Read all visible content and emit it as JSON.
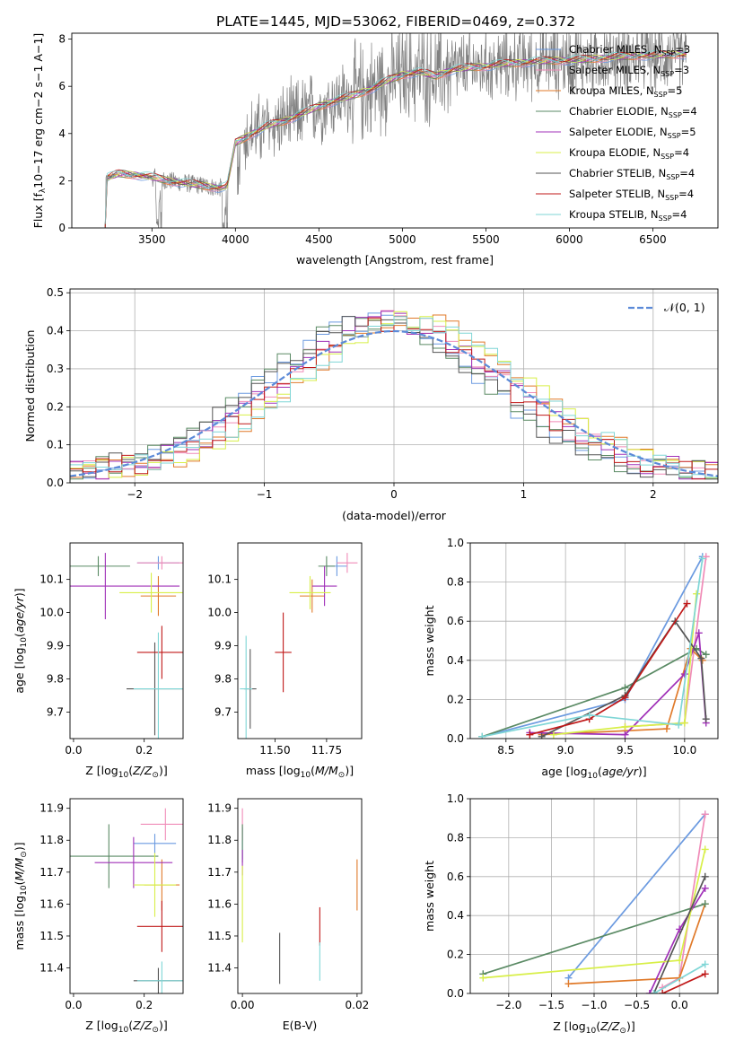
{
  "title": "PLATE=1445, MJD=53062, FIBERID=0469, z=0.372",
  "colors": {
    "chabrier_miles": "#6b9ae0",
    "salpeter_miles": "#f08cb8",
    "kroupa_miles": "#e07a2a",
    "chabrier_elodie": "#5a8a64",
    "salpeter_elodie": "#a030b8",
    "kroupa_elodie": "#d8ef48",
    "chabrier_stelib": "#555555",
    "salpeter_stelib": "#c01818",
    "kroupa_stelib": "#7fd6d6",
    "data": "#808080",
    "gauss": "#5b8ad8"
  },
  "legend": [
    {
      "sub": "Chabrier MILES, N",
      "n": "=3"
    },
    {
      "sub": "Salpeter MILES, N",
      "n": "=3"
    },
    {
      "sub": "Kroupa MILES, N",
      "n": "=5"
    },
    {
      "sub": "Chabrier ELODIE, N",
      "n": "=4"
    },
    {
      "sub": "Salpeter ELODIE, N",
      "n": "=5"
    },
    {
      "sub": "Kroupa ELODIE, N",
      "n": "=4"
    },
    {
      "sub": "Chabrier STELIB, N",
      "n": "=4"
    },
    {
      "sub": "Salpeter STELIB, N",
      "n": "=4"
    },
    {
      "sub": "Kroupa STELIB, N",
      "n": "=4"
    }
  ],
  "legend_ssp": "SSP",
  "chart_data": [
    {
      "id": "spectrum",
      "type": "line",
      "xlabel": "wavelength [Angstrom, rest frame]",
      "ylabel": "Flux [f_λ 10^-17 erg cm^-2 s^-1 A^-1]",
      "xlim": [
        3020,
        6890
      ],
      "ylim": [
        0,
        8.25
      ],
      "xticks": [
        3500,
        4000,
        4500,
        5000,
        5500,
        6000,
        6500
      ],
      "yticks": [
        0,
        2,
        4,
        6,
        8
      ],
      "legend_position": "upper right",
      "continuum": [
        [
          3220,
          0
        ],
        [
          3225,
          2.1
        ],
        [
          3300,
          2.3
        ],
        [
          3400,
          2.25
        ],
        [
          3500,
          2.15
        ],
        [
          3600,
          2.0
        ],
        [
          3700,
          1.9
        ],
        [
          3800,
          1.8
        ],
        [
          3900,
          1.7
        ],
        [
          3950,
          1.75
        ],
        [
          4000,
          3.6
        ],
        [
          4100,
          4.0
        ],
        [
          4200,
          4.35
        ],
        [
          4300,
          4.55
        ],
        [
          4400,
          4.85
        ],
        [
          4500,
          5.15
        ],
        [
          4600,
          5.4
        ],
        [
          4700,
          5.6
        ],
        [
          4800,
          5.85
        ],
        [
          4900,
          6.2
        ],
        [
          5000,
          6.5
        ],
        [
          5100,
          6.6
        ],
        [
          5200,
          6.45
        ],
        [
          5300,
          6.7
        ],
        [
          5400,
          6.8
        ],
        [
          5500,
          6.85
        ],
        [
          5600,
          6.95
        ],
        [
          5700,
          7.0
        ],
        [
          5800,
          7.05
        ],
        [
          5900,
          7.1
        ],
        [
          6000,
          7.1
        ],
        [
          6100,
          7.15
        ],
        [
          6200,
          7.2
        ],
        [
          6300,
          7.25
        ],
        [
          6400,
          7.3
        ],
        [
          6500,
          7.3
        ],
        [
          6600,
          7.35
        ],
        [
          6700,
          7.35
        ]
      ]
    },
    {
      "id": "residuals",
      "type": "histogram",
      "xlabel": "(data-model)/error",
      "ylabel": "Normed distribution",
      "xlim": [
        -2.5,
        2.5
      ],
      "ylim": [
        0,
        0.51
      ],
      "xticks": [
        -2,
        -1,
        0,
        1,
        2
      ],
      "yticks": [
        0.0,
        0.1,
        0.2,
        0.3,
        0.4,
        0.5
      ],
      "legend_label": "𝒩(0, 1)",
      "legend_position": "upper right",
      "grid": true
    },
    {
      "id": "age_vs_z",
      "type": "scatter",
      "xlabel": "Z [log10(Z/Z⊙)]",
      "ylabel": "age [log10(age/yr)]",
      "xlim": [
        -0.01,
        0.31
      ],
      "ylim": [
        9.62,
        10.21
      ],
      "xticks": [
        0.0,
        0.2
      ],
      "yticks": [
        9.7,
        9.8,
        9.9,
        10.0,
        10.1
      ],
      "points": [
        {
          "s": "chabrier_miles",
          "x": 0.24,
          "xe": 0.06,
          "y": 10.15,
          "ye": 0.02
        },
        {
          "s": "salpeter_miles",
          "x": 0.25,
          "xe": 0.07,
          "y": 10.15,
          "ye": 0.02
        },
        {
          "s": "kroupa_miles",
          "x": 0.24,
          "xe": 0.05,
          "y": 10.05,
          "ye": 0.06
        },
        {
          "s": "chabrier_elodie",
          "x": 0.07,
          "xe": 0.09,
          "y": 10.14,
          "ye": 0.03
        },
        {
          "s": "salpeter_elodie",
          "x": 0.09,
          "xe": 0.21,
          "y": 10.08,
          "ye": 0.1
        },
        {
          "s": "kroupa_elodie",
          "x": 0.22,
          "xe": 0.09,
          "y": 10.06,
          "ye": 0.06
        },
        {
          "s": "chabrier_stelib",
          "x": 0.23,
          "xe": 0.08,
          "y": 9.77,
          "ye": 0.14
        },
        {
          "s": "salpeter_stelib",
          "x": 0.25,
          "xe": 0.07,
          "y": 9.88,
          "ye": 0.08
        },
        {
          "s": "kroupa_stelib",
          "x": 0.24,
          "xe": 0.07,
          "y": 9.77,
          "ye": 0.17
        }
      ]
    },
    {
      "id": "age_vs_mass",
      "type": "scatter",
      "xlabel": "mass [log10(M/M⊙)]",
      "ylabel": "",
      "xlim": [
        11.32,
        11.92
      ],
      "ylim": [
        9.62,
        10.21
      ],
      "xticks": [
        11.5,
        11.75
      ],
      "yticks": [
        9.7,
        9.8,
        9.9,
        10.0,
        10.1
      ],
      "points": [
        {
          "s": "chabrier_miles",
          "x": 11.8,
          "xe": 0.05,
          "y": 10.14,
          "ye": 0.03
        },
        {
          "s": "salpeter_miles",
          "x": 11.85,
          "xe": 0.05,
          "y": 10.15,
          "ye": 0.03
        },
        {
          "s": "kroupa_miles",
          "x": 11.68,
          "xe": 0.06,
          "y": 10.05,
          "ye": 0.05
        },
        {
          "s": "chabrier_elodie",
          "x": 11.75,
          "xe": 0.04,
          "y": 10.14,
          "ye": 0.03
        },
        {
          "s": "salpeter_elodie",
          "x": 11.74,
          "xe": 0.06,
          "y": 10.08,
          "ye": 0.06
        },
        {
          "s": "kroupa_elodie",
          "x": 11.67,
          "xe": 0.1,
          "y": 10.06,
          "ye": 0.05
        },
        {
          "s": "chabrier_stelib",
          "x": 11.38,
          "xe": 0.03,
          "y": 9.77,
          "ye": 0.12
        },
        {
          "s": "salpeter_stelib",
          "x": 11.54,
          "xe": 0.04,
          "y": 9.88,
          "ye": 0.12
        },
        {
          "s": "kroupa_stelib",
          "x": 11.36,
          "xe": 0.03,
          "y": 9.77,
          "ye": 0.16
        }
      ]
    },
    {
      "id": "weight_vs_age",
      "type": "line",
      "xlabel": "age [log10(age/yr)]",
      "ylabel": "mass weight",
      "xlim": [
        8.2,
        10.28
      ],
      "ylim": [
        0,
        1.0
      ],
      "xticks": [
        8.5,
        9.0,
        9.5,
        10.0
      ],
      "yticks": [
        0.0,
        0.2,
        0.4,
        0.6,
        0.8,
        1.0
      ],
      "grid": true,
      "series": [
        {
          "s": "chabrier_miles",
          "x": [
            8.3,
            9.5,
            10.15
          ],
          "y": [
            0.01,
            0.2,
            0.93
          ]
        },
        {
          "s": "salpeter_miles",
          "x": [
            9.5,
            10.0,
            10.18
          ],
          "y": [
            0.06,
            0.08,
            0.93
          ]
        },
        {
          "s": "kroupa_miles",
          "x": [
            8.8,
            9.5,
            9.85,
            10.05,
            10.15
          ],
          "y": [
            0.02,
            0.04,
            0.05,
            0.46,
            0.4
          ]
        },
        {
          "s": "chabrier_elodie",
          "x": [
            8.3,
            9.5,
            10.1,
            10.18
          ],
          "y": [
            0.01,
            0.26,
            0.46,
            0.43
          ]
        },
        {
          "s": "salpeter_elodie",
          "x": [
            8.7,
            9.5,
            10.0,
            10.12,
            10.18
          ],
          "y": [
            0.03,
            0.02,
            0.33,
            0.54,
            0.08
          ]
        },
        {
          "s": "kroupa_elodie",
          "x": [
            8.9,
            9.5,
            10.0,
            10.1
          ],
          "y": [
            0.02,
            0.06,
            0.08,
            0.74
          ]
        },
        {
          "s": "chabrier_stelib",
          "x": [
            8.8,
            9.5,
            9.92,
            10.14,
            10.18
          ],
          "y": [
            0.01,
            0.22,
            0.6,
            0.41,
            0.1
          ]
        },
        {
          "s": "salpeter_stelib",
          "x": [
            8.7,
            9.2,
            9.5,
            10.02
          ],
          "y": [
            0.02,
            0.1,
            0.21,
            0.69
          ]
        },
        {
          "s": "kroupa_stelib",
          "x": [
            8.3,
            9.2,
            9.95,
            10.15
          ],
          "y": [
            0.01,
            0.12,
            0.07,
            0.92
          ]
        }
      ]
    },
    {
      "id": "mass_vs_z",
      "type": "scatter",
      "xlabel": "Z [log10(Z/Z⊙)]",
      "ylabel": "mass [log10(M/M⊙)]",
      "xlim": [
        -0.01,
        0.31
      ],
      "ylim": [
        11.32,
        11.93
      ],
      "xticks": [
        0.0,
        0.2
      ],
      "yticks": [
        11.4,
        11.5,
        11.6,
        11.7,
        11.8,
        11.9
      ],
      "points": [
        {
          "s": "chabrier_miles",
          "x": 0.23,
          "xe": 0.06,
          "y": 11.79,
          "ye": 0.03
        },
        {
          "s": "salpeter_miles",
          "x": 0.26,
          "xe": 0.07,
          "y": 11.85,
          "ye": 0.05
        },
        {
          "s": "kroupa_miles",
          "x": 0.25,
          "xe": 0.05,
          "y": 11.66,
          "ye": 0.08
        },
        {
          "s": "chabrier_elodie",
          "x": 0.1,
          "xe": 0.14,
          "y": 11.75,
          "ye": 0.1
        },
        {
          "s": "salpeter_elodie",
          "x": 0.17,
          "xe": 0.11,
          "y": 11.73,
          "ye": 0.08
        },
        {
          "s": "kroupa_elodie",
          "x": 0.23,
          "xe": 0.06,
          "y": 11.66,
          "ye": 0.1
        },
        {
          "s": "chabrier_stelib",
          "x": 0.24,
          "xe": 0.07,
          "y": 11.36,
          "ye": 0.04
        },
        {
          "s": "salpeter_stelib",
          "x": 0.25,
          "xe": 0.07,
          "y": 11.53,
          "ye": 0.08
        },
        {
          "s": "kroupa_stelib",
          "x": 0.25,
          "xe": 0.07,
          "y": 11.36,
          "ye": 0.06
        }
      ]
    },
    {
      "id": "mass_vs_ebv",
      "type": "scatter",
      "xlabel": "E(B-V)",
      "ylabel": "",
      "xlim": [
        -0.0008,
        0.0208
      ],
      "ylim": [
        11.32,
        11.93
      ],
      "xticks": [
        0.0,
        0.02
      ],
      "xtick_labels": [
        "0.00",
        "0.02"
      ],
      "yticks": [
        11.4,
        11.5,
        11.6,
        11.7,
        11.8,
        11.9
      ],
      "points": [
        {
          "s": "chabrier_miles",
          "x": 0.0,
          "xe": 0,
          "y": 11.79,
          "ye": 0.05
        },
        {
          "s": "salpeter_miles",
          "x": 0.0,
          "xe": 0,
          "y": 11.85,
          "ye": 0.05
        },
        {
          "s": "kroupa_miles",
          "x": 0.02,
          "xe": 0,
          "y": 11.66,
          "ye": 0.08
        },
        {
          "s": "chabrier_elodie",
          "x": 0.0,
          "xe": 0,
          "y": 11.79,
          "ye": 0.06
        },
        {
          "s": "salpeter_elodie",
          "x": 0.0,
          "xe": 0,
          "y": 11.73,
          "ye": 0.04
        },
        {
          "s": "kroupa_elodie",
          "x": 0.0,
          "xe": 0,
          "y": 11.6,
          "ye": 0.12
        },
        {
          "s": "chabrier_stelib",
          "x": 0.0065,
          "xe": 0,
          "y": 11.43,
          "ye": 0.08
        },
        {
          "s": "salpeter_stelib",
          "x": 0.0135,
          "xe": 0,
          "y": 11.53,
          "ye": 0.06
        },
        {
          "s": "kroupa_stelib",
          "x": 0.0135,
          "xe": 0,
          "y": 11.42,
          "ye": 0.06
        }
      ]
    },
    {
      "id": "weight_vs_z",
      "type": "line",
      "xlabel": "Z [log10(Z/Z⊙)]",
      "ylabel": "mass weight",
      "xlim": [
        -2.45,
        0.45
      ],
      "ylim": [
        0,
        1.0
      ],
      "xticks": [
        -2.0,
        -1.5,
        -1.0,
        -0.5,
        0.0
      ],
      "yticks": [
        0.0,
        0.2,
        0.4,
        0.6,
        0.8,
        1.0
      ],
      "grid": true,
      "series": [
        {
          "s": "chabrier_miles",
          "x": [
            -1.3,
            0.3
          ],
          "y": [
            0.08,
            0.92
          ]
        },
        {
          "s": "salpeter_miles",
          "x": [
            -0.2,
            0.0,
            0.3
          ],
          "y": [
            0.03,
            0.08,
            0.92
          ]
        },
        {
          "s": "kroupa_miles",
          "x": [
            -1.3,
            0.0,
            0.3
          ],
          "y": [
            0.05,
            0.08,
            0.46
          ]
        },
        {
          "s": "chabrier_elodie",
          "x": [
            -2.3,
            0.3
          ],
          "y": [
            0.1,
            0.46
          ]
        },
        {
          "s": "salpeter_elodie",
          "x": [
            -0.35,
            0.0,
            0.3
          ],
          "y": [
            0.0,
            0.33,
            0.54
          ]
        },
        {
          "s": "kroupa_elodie",
          "x": [
            -2.3,
            0.0,
            0.3
          ],
          "y": [
            0.08,
            0.17,
            0.74
          ]
        },
        {
          "s": "chabrier_stelib",
          "x": [
            -0.3,
            0.3
          ],
          "y": [
            0.0,
            0.6
          ]
        },
        {
          "s": "salpeter_stelib",
          "x": [
            -0.2,
            0.3
          ],
          "y": [
            0.0,
            0.1
          ]
        },
        {
          "s": "kroupa_stelib",
          "x": [
            -0.3,
            0.3
          ],
          "y": [
            0.0,
            0.15
          ]
        }
      ]
    }
  ]
}
